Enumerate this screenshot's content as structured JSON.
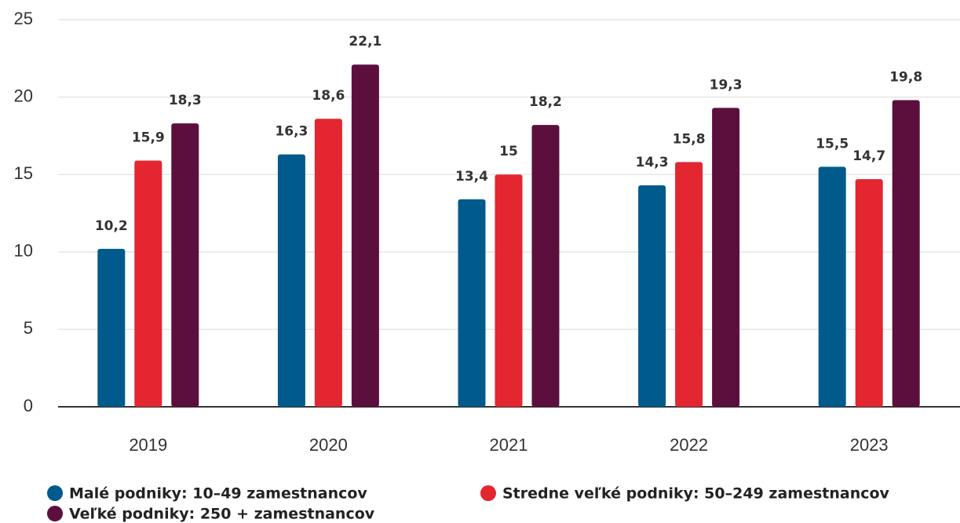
{
  "chart_data": {
    "type": "bar",
    "categories": [
      "2019",
      "2020",
      "2021",
      "2022",
      "2023"
    ],
    "series": [
      {
        "name": "Malé podniky: 10–49 zamestnancov",
        "color": "#005a8c",
        "values": [
          10.2,
          16.3,
          13.4,
          14.3,
          15.5
        ],
        "value_labels": [
          "10,2",
          "16,3",
          "13,4",
          "14,3",
          "15,5"
        ]
      },
      {
        "name": "Stredne veľké podniky: 50–249 zamestnancov",
        "color": "#e3262f",
        "values": [
          15.9,
          18.6,
          15,
          15.8,
          14.7
        ],
        "value_labels": [
          "15,9",
          "18,6",
          "15",
          "15,8",
          "14,7"
        ]
      },
      {
        "name": "Veľké podniky: 250 + zamestnancov",
        "color": "#5c0f3c",
        "values": [
          18.3,
          22.1,
          18.2,
          19.3,
          19.8
        ],
        "value_labels": [
          "18,3",
          "22,1",
          "18,2",
          "19,3",
          "19,8"
        ]
      }
    ],
    "ylim": [
      0,
      25
    ],
    "yticks": [
      0,
      5,
      10,
      15,
      20,
      25
    ],
    "grid": true,
    "legend": "bottom"
  }
}
